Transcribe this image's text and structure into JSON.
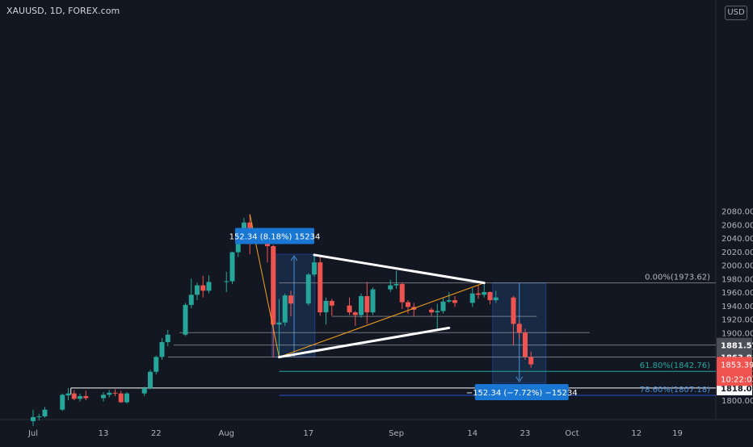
{
  "header": {
    "title": "XAUUSD, 1D, FOREX.com",
    "currency": "USD"
  },
  "colors": {
    "background": "#131722",
    "up": "#26a69a",
    "down": "#ef5350",
    "axis_text": "#b2b5be",
    "white_line": "#ffffff",
    "fib_line": "#b2b5be",
    "orange_line": "#f7a21b",
    "measure_fill": "#1e3a5f",
    "measure_label": "#1976d2",
    "teal_line": "#26a69a",
    "blue_line": "#2962ff"
  },
  "chart_data": {
    "type": "candlestick",
    "symbol": "XAUUSD",
    "interval": "1D",
    "source": "FOREX.com",
    "currency": "USD",
    "ylim": [
      1780,
      2085
    ],
    "y_ticks": [
      1800,
      1820,
      1840,
      1860,
      1880,
      1900,
      1920,
      1940,
      1960,
      1980,
      2000,
      2020,
      2040,
      2060,
      2080
    ],
    "y_tick_labels": [
      "1800.00",
      "1820.00",
      "1840.00",
      "1860.00",
      "1880.00",
      "1900.00",
      "1920.00",
      "1940.00",
      "1960.00",
      "1980.00",
      "2000.00",
      "2020.00",
      "2040.00",
      "2060.00",
      "2080.00"
    ],
    "x_labels": [
      {
        "label": "Jul",
        "date": "2020-07-01"
      },
      {
        "label": "13",
        "date": "2020-07-13"
      },
      {
        "label": "22",
        "date": "2020-07-22"
      },
      {
        "label": "Aug",
        "date": "2020-08-03"
      },
      {
        "label": "17",
        "date": "2020-08-17"
      },
      {
        "label": "Sep",
        "date": "2020-09-01"
      },
      {
        "label": "14",
        "date": "2020-09-14"
      },
      {
        "label": "23",
        "date": "2020-09-23"
      },
      {
        "label": "Oct",
        "date": "2020-10-01"
      },
      {
        "label": "12",
        "date": "2020-10-12"
      },
      {
        "label": "19",
        "date": "2020-10-19"
      }
    ],
    "candles": [
      {
        "date": "2020-07-01",
        "o": 1769,
        "h": 1786,
        "l": 1762,
        "c": 1775
      },
      {
        "date": "2020-07-02",
        "o": 1775,
        "h": 1780,
        "l": 1770,
        "c": 1776
      },
      {
        "date": "2020-07-03",
        "o": 1776,
        "h": 1790,
        "l": 1774,
        "c": 1786
      },
      {
        "date": "2020-07-06",
        "o": 1786,
        "h": 1810,
        "l": 1784,
        "c": 1808
      },
      {
        "date": "2020-07-07",
        "o": 1807,
        "h": 1818,
        "l": 1800,
        "c": 1810
      },
      {
        "date": "2020-07-08",
        "o": 1810,
        "h": 1815,
        "l": 1800,
        "c": 1802
      },
      {
        "date": "2020-07-09",
        "o": 1802,
        "h": 1810,
        "l": 1798,
        "c": 1806
      },
      {
        "date": "2020-07-10",
        "o": 1806,
        "h": 1814,
        "l": 1800,
        "c": 1803
      },
      {
        "date": "2020-07-13",
        "o": 1803,
        "h": 1812,
        "l": 1798,
        "c": 1808
      },
      {
        "date": "2020-07-14",
        "o": 1808,
        "h": 1815,
        "l": 1804,
        "c": 1811
      },
      {
        "date": "2020-07-15",
        "o": 1811,
        "h": 1816,
        "l": 1806,
        "c": 1810
      },
      {
        "date": "2020-07-16",
        "o": 1810,
        "h": 1814,
        "l": 1796,
        "c": 1797
      },
      {
        "date": "2020-07-17",
        "o": 1797,
        "h": 1812,
        "l": 1795,
        "c": 1810
      },
      {
        "date": "2020-07-20",
        "o": 1810,
        "h": 1820,
        "l": 1806,
        "c": 1818
      },
      {
        "date": "2020-07-21",
        "o": 1818,
        "h": 1845,
        "l": 1816,
        "c": 1842
      },
      {
        "date": "2020-07-22",
        "o": 1842,
        "h": 1866,
        "l": 1838,
        "c": 1864
      },
      {
        "date": "2020-07-23",
        "o": 1864,
        "h": 1892,
        "l": 1860,
        "c": 1886
      },
      {
        "date": "2020-07-24",
        "o": 1886,
        "h": 1904,
        "l": 1880,
        "c": 1897
      },
      {
        "date": "2020-07-27",
        "o": 1897,
        "h": 1944,
        "l": 1895,
        "c": 1941
      },
      {
        "date": "2020-07-28",
        "o": 1941,
        "h": 1980,
        "l": 1936,
        "c": 1956
      },
      {
        "date": "2020-07-29",
        "o": 1956,
        "h": 1974,
        "l": 1948,
        "c": 1970
      },
      {
        "date": "2020-07-30",
        "o": 1970,
        "h": 1984,
        "l": 1952,
        "c": 1962
      },
      {
        "date": "2020-07-31",
        "o": 1962,
        "h": 1985,
        "l": 1958,
        "c": 1975
      },
      {
        "date": "2020-08-03",
        "o": 1975,
        "h": 1990,
        "l": 1960,
        "c": 1976
      },
      {
        "date": "2020-08-04",
        "o": 1976,
        "h": 2020,
        "l": 1972,
        "c": 2019
      },
      {
        "date": "2020-08-05",
        "o": 2019,
        "h": 2055,
        "l": 2012,
        "c": 2038
      },
      {
        "date": "2020-08-06",
        "o": 2038,
        "h": 2070,
        "l": 2034,
        "c": 2063
      },
      {
        "date": "2020-08-07",
        "o": 2063,
        "h": 2075,
        "l": 2016,
        "c": 2035
      },
      {
        "date": "2020-08-10",
        "o": 2035,
        "h": 2051,
        "l": 2004,
        "c": 2028
      },
      {
        "date": "2020-08-11",
        "o": 2028,
        "h": 2030,
        "l": 1863,
        "c": 1912
      },
      {
        "date": "2020-08-12",
        "o": 1912,
        "h": 1950,
        "l": 1862,
        "c": 1915
      },
      {
        "date": "2020-08-13",
        "o": 1915,
        "h": 1958,
        "l": 1910,
        "c": 1955
      },
      {
        "date": "2020-08-14",
        "o": 1955,
        "h": 1962,
        "l": 1924,
        "c": 1943
      },
      {
        "date": "2020-08-17",
        "o": 1943,
        "h": 1988,
        "l": 1940,
        "c": 1986
      },
      {
        "date": "2020-08-18",
        "o": 1986,
        "h": 2016,
        "l": 1983,
        "c": 2004
      },
      {
        "date": "2020-08-19",
        "o": 2004,
        "h": 2014,
        "l": 1925,
        "c": 1930
      },
      {
        "date": "2020-08-20",
        "o": 1930,
        "h": 1952,
        "l": 1912,
        "c": 1947
      },
      {
        "date": "2020-08-21",
        "o": 1947,
        "h": 1950,
        "l": 1925,
        "c": 1940
      },
      {
        "date": "2020-08-24",
        "o": 1940,
        "h": 1952,
        "l": 1926,
        "c": 1930
      },
      {
        "date": "2020-08-25",
        "o": 1930,
        "h": 1932,
        "l": 1910,
        "c": 1926
      },
      {
        "date": "2020-08-26",
        "o": 1926,
        "h": 1958,
        "l": 1922,
        "c": 1954
      },
      {
        "date": "2020-08-27",
        "o": 1954,
        "h": 1975,
        "l": 1913,
        "c": 1930
      },
      {
        "date": "2020-08-28",
        "o": 1930,
        "h": 1967,
        "l": 1926,
        "c": 1964
      },
      {
        "date": "2020-08-31",
        "o": 1964,
        "h": 1978,
        "l": 1960,
        "c": 1970
      },
      {
        "date": "2020-09-01",
        "o": 1970,
        "h": 1992,
        "l": 1965,
        "c": 1972
      },
      {
        "date": "2020-09-02",
        "o": 1972,
        "h": 1974,
        "l": 1935,
        "c": 1945
      },
      {
        "date": "2020-09-03",
        "o": 1945,
        "h": 1948,
        "l": 1928,
        "c": 1938
      },
      {
        "date": "2020-09-04",
        "o": 1938,
        "h": 1944,
        "l": 1924,
        "c": 1934
      },
      {
        "date": "2020-09-07",
        "o": 1934,
        "h": 1937,
        "l": 1925,
        "c": 1930
      },
      {
        "date": "2020-09-08",
        "o": 1930,
        "h": 1943,
        "l": 1906,
        "c": 1932
      },
      {
        "date": "2020-09-09",
        "o": 1932,
        "h": 1952,
        "l": 1928,
        "c": 1946
      },
      {
        "date": "2020-09-10",
        "o": 1946,
        "h": 1960,
        "l": 1944,
        "c": 1948
      },
      {
        "date": "2020-09-11",
        "o": 1948,
        "h": 1954,
        "l": 1938,
        "c": 1944
      },
      {
        "date": "2020-09-14",
        "o": 1944,
        "h": 1966,
        "l": 1938,
        "c": 1958
      },
      {
        "date": "2020-09-15",
        "o": 1958,
        "h": 1970,
        "l": 1950,
        "c": 1956
      },
      {
        "date": "2020-09-16",
        "o": 1956,
        "h": 1973,
        "l": 1952,
        "c": 1960
      },
      {
        "date": "2020-09-17",
        "o": 1960,
        "h": 1961,
        "l": 1942,
        "c": 1948
      },
      {
        "date": "2020-09-18",
        "o": 1948,
        "h": 1962,
        "l": 1944,
        "c": 1952
      },
      {
        "date": "2020-09-21",
        "o": 1952,
        "h": 1954,
        "l": 1882,
        "c": 1913
      },
      {
        "date": "2020-09-22",
        "o": 1913,
        "h": 1918,
        "l": 1891,
        "c": 1900
      },
      {
        "date": "2020-09-23",
        "o": 1900,
        "h": 1906,
        "l": 1860,
        "c": 1864
      },
      {
        "date": "2020-09-24",
        "o": 1864,
        "h": 1872,
        "l": 1848,
        "c": 1853
      }
    ],
    "horizontal_levels": [
      {
        "price": 1881.57,
        "label": "1881.57"
      },
      {
        "price": 1863.81,
        "label": "1863.81"
      },
      {
        "price": 1818.05,
        "label": "1818.05"
      }
    ],
    "current_price": {
      "price": 1853.39,
      "label": "1853.39",
      "countdown": "10:22:03"
    },
    "fibonacci": [
      {
        "level": "0.00%",
        "price": 1973.62,
        "label": "0.00%(1973.62)"
      },
      {
        "level": "61.80%",
        "price": 1842.76,
        "label": "61.80%(1842.76)"
      },
      {
        "level": "78.60%",
        "price": 1807.18,
        "label": "78.60%(1807.18)"
      }
    ],
    "measurements": [
      {
        "label": "152.34 (8.18%) 15234",
        "change": 152.34,
        "percent": 8.18,
        "ticks": 15234
      },
      {
        "label": "−152.34 (−7.72%) −15234",
        "change": -152.34,
        "percent": -7.72,
        "ticks": -15234
      }
    ]
  }
}
